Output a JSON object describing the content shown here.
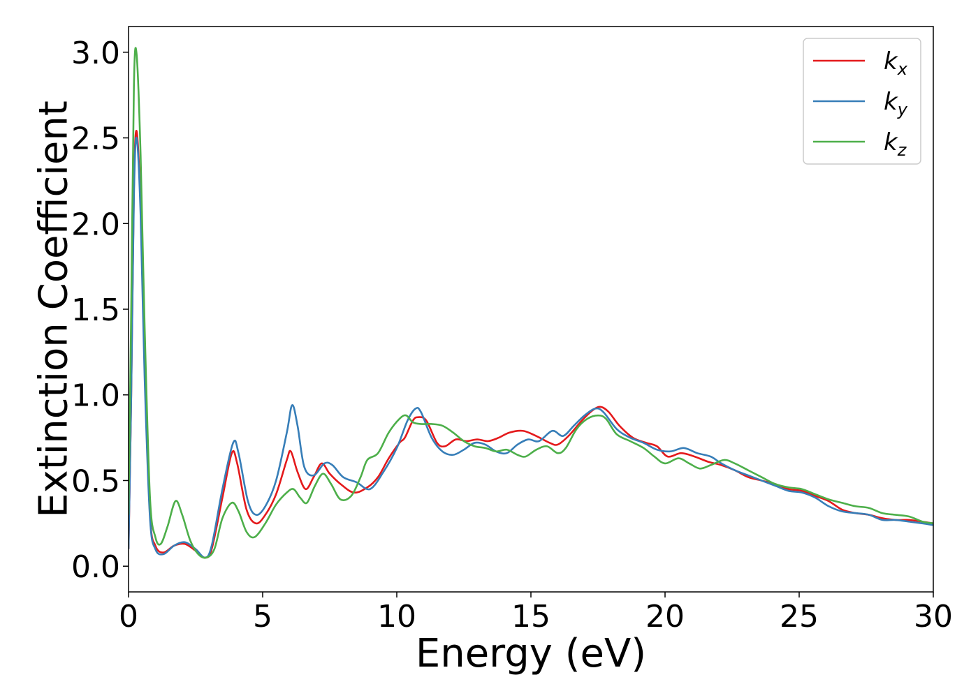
{
  "chart_data": {
    "type": "line",
    "xlabel": "Energy (eV)",
    "ylabel": "Extinction Coefficient",
    "xlim": [
      0,
      30
    ],
    "ylim": [
      -0.15,
      3.15
    ],
    "xticks": [
      0,
      5,
      10,
      15,
      20,
      25,
      30
    ],
    "yticks": [
      0.0,
      0.5,
      1.0,
      1.5,
      2.0,
      2.5,
      3.0
    ],
    "xtick_labels": [
      "0",
      "5",
      "10",
      "15",
      "20",
      "25",
      "30"
    ],
    "ytick_labels": [
      "0.0",
      "0.5",
      "1.0",
      "1.5",
      "2.0",
      "2.5",
      "3.0"
    ],
    "grid": false,
    "legend_position": "top-right",
    "series": [
      {
        "name": "k_x",
        "label_base": "k",
        "label_sub": "x",
        "color": "#e41a1c",
        "points": [
          [
            0,
            0.1
          ],
          [
            0.1,
            1.0
          ],
          [
            0.2,
            2.2
          ],
          [
            0.3,
            2.54
          ],
          [
            0.45,
            2.1
          ],
          [
            0.6,
            1.2
          ],
          [
            0.8,
            0.3
          ],
          [
            1.0,
            0.12
          ],
          [
            1.3,
            0.08
          ],
          [
            1.7,
            0.12
          ],
          [
            2.1,
            0.13
          ],
          [
            2.5,
            0.09
          ],
          [
            2.85,
            0.05
          ],
          [
            3.1,
            0.1
          ],
          [
            3.5,
            0.4
          ],
          [
            3.85,
            0.66
          ],
          [
            4.05,
            0.6
          ],
          [
            4.4,
            0.33
          ],
          [
            4.75,
            0.25
          ],
          [
            5.1,
            0.3
          ],
          [
            5.5,
            0.42
          ],
          [
            5.9,
            0.62
          ],
          [
            6.05,
            0.67
          ],
          [
            6.3,
            0.55
          ],
          [
            6.6,
            0.45
          ],
          [
            6.9,
            0.52
          ],
          [
            7.2,
            0.6
          ],
          [
            7.5,
            0.54
          ],
          [
            7.9,
            0.48
          ],
          [
            8.4,
            0.43
          ],
          [
            8.9,
            0.46
          ],
          [
            9.3,
            0.52
          ],
          [
            9.7,
            0.63
          ],
          [
            10.1,
            0.72
          ],
          [
            10.3,
            0.75
          ],
          [
            10.6,
            0.85
          ],
          [
            10.8,
            0.87
          ],
          [
            11.1,
            0.85
          ],
          [
            11.5,
            0.72
          ],
          [
            11.8,
            0.7
          ],
          [
            12.2,
            0.74
          ],
          [
            12.6,
            0.73
          ],
          [
            13.0,
            0.74
          ],
          [
            13.4,
            0.73
          ],
          [
            13.8,
            0.75
          ],
          [
            14.2,
            0.78
          ],
          [
            14.7,
            0.79
          ],
          [
            15.2,
            0.76
          ],
          [
            15.7,
            0.72
          ],
          [
            16.0,
            0.71
          ],
          [
            16.4,
            0.76
          ],
          [
            16.9,
            0.85
          ],
          [
            17.3,
            0.91
          ],
          [
            17.6,
            0.93
          ],
          [
            17.9,
            0.9
          ],
          [
            18.3,
            0.82
          ],
          [
            18.8,
            0.75
          ],
          [
            19.3,
            0.72
          ],
          [
            19.7,
            0.7
          ],
          [
            20.1,
            0.64
          ],
          [
            20.6,
            0.66
          ],
          [
            21.1,
            0.64
          ],
          [
            21.6,
            0.61
          ],
          [
            22.1,
            0.59
          ],
          [
            22.6,
            0.56
          ],
          [
            23.1,
            0.52
          ],
          [
            23.6,
            0.5
          ],
          [
            24.1,
            0.48
          ],
          [
            24.6,
            0.45
          ],
          [
            25.1,
            0.44
          ],
          [
            25.6,
            0.41
          ],
          [
            26.1,
            0.38
          ],
          [
            26.6,
            0.33
          ],
          [
            27.1,
            0.31
          ],
          [
            27.6,
            0.3
          ],
          [
            28.1,
            0.28
          ],
          [
            28.6,
            0.27
          ],
          [
            29.1,
            0.27
          ],
          [
            29.6,
            0.26
          ],
          [
            30,
            0.25
          ]
        ]
      },
      {
        "name": "k_y",
        "label_base": "k",
        "label_sub": "y",
        "color": "#377eb8",
        "points": [
          [
            0,
            0.1
          ],
          [
            0.1,
            1.0
          ],
          [
            0.2,
            2.15
          ],
          [
            0.3,
            2.5
          ],
          [
            0.45,
            2.05
          ],
          [
            0.6,
            1.1
          ],
          [
            0.8,
            0.28
          ],
          [
            1.0,
            0.1
          ],
          [
            1.3,
            0.07
          ],
          [
            1.7,
            0.12
          ],
          [
            2.1,
            0.14
          ],
          [
            2.5,
            0.1
          ],
          [
            2.85,
            0.05
          ],
          [
            3.1,
            0.12
          ],
          [
            3.5,
            0.45
          ],
          [
            3.9,
            0.72
          ],
          [
            4.1,
            0.66
          ],
          [
            4.45,
            0.38
          ],
          [
            4.75,
            0.3
          ],
          [
            5.1,
            0.35
          ],
          [
            5.5,
            0.5
          ],
          [
            5.9,
            0.78
          ],
          [
            6.1,
            0.94
          ],
          [
            6.3,
            0.82
          ],
          [
            6.55,
            0.58
          ],
          [
            6.9,
            0.53
          ],
          [
            7.3,
            0.6
          ],
          [
            7.6,
            0.59
          ],
          [
            8.0,
            0.52
          ],
          [
            8.5,
            0.49
          ],
          [
            9.0,
            0.45
          ],
          [
            9.5,
            0.55
          ],
          [
            10.0,
            0.69
          ],
          [
            10.4,
            0.85
          ],
          [
            10.7,
            0.92
          ],
          [
            10.9,
            0.9
          ],
          [
            11.3,
            0.75
          ],
          [
            11.7,
            0.67
          ],
          [
            12.1,
            0.65
          ],
          [
            12.5,
            0.68
          ],
          [
            12.9,
            0.72
          ],
          [
            13.3,
            0.71
          ],
          [
            13.7,
            0.67
          ],
          [
            14.1,
            0.66
          ],
          [
            14.5,
            0.71
          ],
          [
            14.9,
            0.74
          ],
          [
            15.3,
            0.73
          ],
          [
            15.8,
            0.79
          ],
          [
            16.2,
            0.76
          ],
          [
            16.6,
            0.82
          ],
          [
            17.0,
            0.88
          ],
          [
            17.4,
            0.92
          ],
          [
            17.7,
            0.9
          ],
          [
            18.2,
            0.8
          ],
          [
            18.7,
            0.75
          ],
          [
            19.2,
            0.72
          ],
          [
            19.7,
            0.68
          ],
          [
            20.2,
            0.67
          ],
          [
            20.7,
            0.69
          ],
          [
            21.2,
            0.66
          ],
          [
            21.7,
            0.64
          ],
          [
            22.1,
            0.6
          ],
          [
            22.6,
            0.56
          ],
          [
            23.1,
            0.53
          ],
          [
            23.6,
            0.5
          ],
          [
            24.1,
            0.47
          ],
          [
            24.6,
            0.44
          ],
          [
            25.1,
            0.43
          ],
          [
            25.6,
            0.4
          ],
          [
            26.1,
            0.35
          ],
          [
            26.6,
            0.32
          ],
          [
            27.1,
            0.31
          ],
          [
            27.6,
            0.3
          ],
          [
            28.1,
            0.27
          ],
          [
            28.6,
            0.27
          ],
          [
            29.1,
            0.26
          ],
          [
            29.6,
            0.25
          ],
          [
            30,
            0.24
          ]
        ]
      },
      {
        "name": "k_z",
        "label_base": "k",
        "label_sub": "z",
        "color": "#4daf4a",
        "points": [
          [
            0,
            0.3
          ],
          [
            0.1,
            1.5
          ],
          [
            0.2,
            2.8
          ],
          [
            0.3,
            2.99
          ],
          [
            0.45,
            2.4
          ],
          [
            0.6,
            1.4
          ],
          [
            0.8,
            0.4
          ],
          [
            1.0,
            0.17
          ],
          [
            1.2,
            0.13
          ],
          [
            1.45,
            0.23
          ],
          [
            1.75,
            0.38
          ],
          [
            2.0,
            0.3
          ],
          [
            2.3,
            0.15
          ],
          [
            2.6,
            0.07
          ],
          [
            2.9,
            0.05
          ],
          [
            3.2,
            0.1
          ],
          [
            3.5,
            0.28
          ],
          [
            3.85,
            0.37
          ],
          [
            4.1,
            0.32
          ],
          [
            4.4,
            0.2
          ],
          [
            4.7,
            0.17
          ],
          [
            5.1,
            0.25
          ],
          [
            5.5,
            0.36
          ],
          [
            5.9,
            0.43
          ],
          [
            6.15,
            0.45
          ],
          [
            6.4,
            0.4
          ],
          [
            6.65,
            0.37
          ],
          [
            6.95,
            0.47
          ],
          [
            7.25,
            0.54
          ],
          [
            7.55,
            0.48
          ],
          [
            7.9,
            0.39
          ],
          [
            8.3,
            0.41
          ],
          [
            8.65,
            0.52
          ],
          [
            8.9,
            0.62
          ],
          [
            9.3,
            0.66
          ],
          [
            9.7,
            0.78
          ],
          [
            10.1,
            0.86
          ],
          [
            10.35,
            0.88
          ],
          [
            10.6,
            0.84
          ],
          [
            10.9,
            0.83
          ],
          [
            11.3,
            0.83
          ],
          [
            11.7,
            0.82
          ],
          [
            12.1,
            0.78
          ],
          [
            12.5,
            0.73
          ],
          [
            12.9,
            0.7
          ],
          [
            13.3,
            0.69
          ],
          [
            13.7,
            0.67
          ],
          [
            14.1,
            0.68
          ],
          [
            14.5,
            0.65
          ],
          [
            14.8,
            0.64
          ],
          [
            15.2,
            0.68
          ],
          [
            15.6,
            0.7
          ],
          [
            16.0,
            0.66
          ],
          [
            16.3,
            0.69
          ],
          [
            16.7,
            0.8
          ],
          [
            17.1,
            0.86
          ],
          [
            17.5,
            0.88
          ],
          [
            17.8,
            0.86
          ],
          [
            18.2,
            0.77
          ],
          [
            18.7,
            0.73
          ],
          [
            19.2,
            0.69
          ],
          [
            19.6,
            0.64
          ],
          [
            20.0,
            0.6
          ],
          [
            20.5,
            0.63
          ],
          [
            20.9,
            0.6
          ],
          [
            21.3,
            0.57
          ],
          [
            21.7,
            0.59
          ],
          [
            22.2,
            0.62
          ],
          [
            22.6,
            0.6
          ],
          [
            23.1,
            0.56
          ],
          [
            23.6,
            0.52
          ],
          [
            24.1,
            0.48
          ],
          [
            24.6,
            0.46
          ],
          [
            25.1,
            0.45
          ],
          [
            25.6,
            0.42
          ],
          [
            26.1,
            0.39
          ],
          [
            26.6,
            0.37
          ],
          [
            27.1,
            0.35
          ],
          [
            27.6,
            0.34
          ],
          [
            28.1,
            0.31
          ],
          [
            28.6,
            0.3
          ],
          [
            29.1,
            0.29
          ],
          [
            29.6,
            0.26
          ],
          [
            30,
            0.25
          ]
        ]
      }
    ]
  }
}
